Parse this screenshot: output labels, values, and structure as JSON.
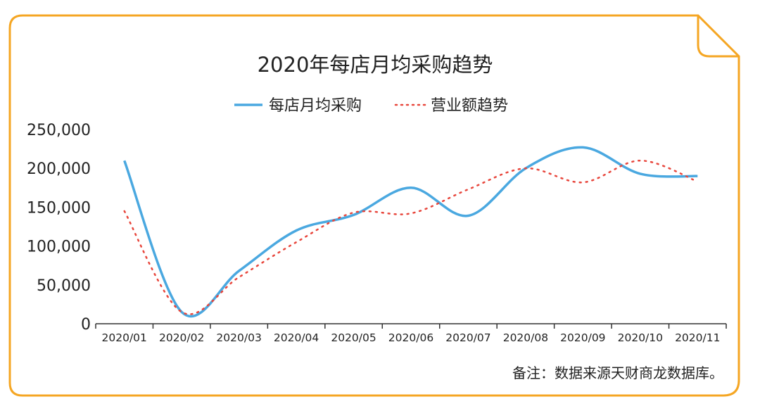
{
  "colors": {
    "frame": "#f5a623",
    "series_1": "#4aa8e0",
    "series_2": "#e8463c",
    "axis": "#333333"
  },
  "chart_data": {
    "type": "line",
    "title": "2020年每店月均采购趋势",
    "categories": [
      "2020/01",
      "2020/02",
      "2020/03",
      "2020/04",
      "2020/05",
      "2020/06",
      "2020/07",
      "2020/08",
      "2020/09",
      "2020/10",
      "2020/11"
    ],
    "series": [
      {
        "name": "每店月均采购",
        "style": "solid",
        "values": [
          210000,
          15000,
          68000,
          120000,
          140000,
          175000,
          139000,
          200000,
          227000,
          193000,
          190000
        ]
      },
      {
        "name": "营业额趋势",
        "style": "dotted",
        "values": [
          145000,
          15000,
          60000,
          105000,
          143000,
          142000,
          173000,
          200000,
          182000,
          210000,
          183000
        ]
      }
    ],
    "y_ticks": [
      "0",
      "50,000",
      "100,000",
      "150,000",
      "200,000",
      "250,000"
    ],
    "ylim": [
      0,
      250000
    ],
    "grid": false,
    "legend_position": "top-center"
  },
  "footnote": "备注：数据来源天财商龙数据库。"
}
